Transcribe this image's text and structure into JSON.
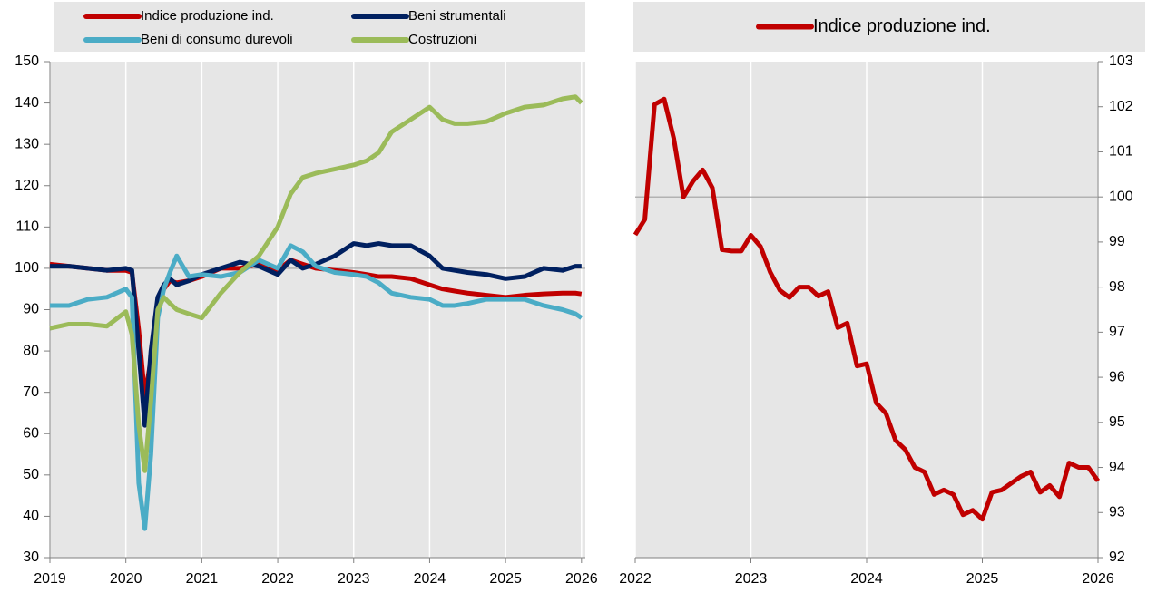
{
  "chart_data": [
    {
      "type": "line",
      "x": [
        2019,
        2019.25,
        2019.5,
        2019.75,
        2020,
        2020.08,
        2020.17,
        2020.25,
        2020.33,
        2020.42,
        2020.5,
        2020.58,
        2020.67,
        2020.83,
        2021,
        2021.25,
        2021.5,
        2021.75,
        2022,
        2022.17,
        2022.33,
        2022.5,
        2022.75,
        2023,
        2023.17,
        2023.33,
        2023.5,
        2023.75,
        2024,
        2024.17,
        2024.33,
        2024.5,
        2024.75,
        2025,
        2025.25,
        2025.5,
        2025.75,
        2025.92,
        2026
      ],
      "series": [
        {
          "name": "Indice produzione ind.",
          "color": "#c00000",
          "values": [
            101,
            100.5,
            100,
            99.5,
            99.5,
            99,
            85,
            69,
            78,
            90,
            95,
            97,
            96.5,
            97,
            98,
            100,
            100,
            101,
            99.5,
            102,
            101,
            100,
            99.5,
            99,
            98.5,
            98,
            98,
            97.5,
            96,
            95,
            94.5,
            94,
            93.5,
            93,
            93.5,
            93.8,
            94,
            94,
            93.8
          ]
        },
        {
          "name": "Beni strumentali",
          "color": "#002060",
          "values": [
            100.5,
            100.5,
            100,
            99.5,
            100,
            99.5,
            80,
            62,
            80,
            93,
            96,
            97.5,
            96,
            97,
            98.5,
            100,
            101.5,
            100.5,
            98.5,
            102,
            100,
            101,
            103,
            106,
            105.5,
            106,
            105.5,
            105.5,
            103,
            100,
            99.5,
            99,
            98.5,
            97.5,
            98,
            100,
            99.5,
            100.5,
            100.5
          ]
        },
        {
          "name": "Beni di consumo durevoli",
          "color": "#4bacc6",
          "values": [
            91,
            91,
            92.5,
            93,
            95,
            93,
            48,
            37,
            55,
            88,
            95,
            99,
            103,
            98,
            98.5,
            98,
            99,
            102,
            100,
            105.5,
            104,
            100.5,
            99,
            98.5,
            98,
            96.5,
            94,
            93,
            92.5,
            91,
            91,
            91.5,
            92.5,
            92.5,
            92.5,
            91,
            90,
            89,
            88
          ]
        },
        {
          "name": "Costruzioni",
          "color": "#9bbb59",
          "values": [
            85.5,
            86.5,
            86.5,
            86,
            89.5,
            84,
            62,
            51,
            68,
            90,
            93,
            91.5,
            90,
            89,
            88,
            94,
            99,
            103,
            110,
            118,
            122,
            123,
            124,
            125,
            126,
            128,
            133,
            136,
            139,
            136,
            135,
            135,
            135.5,
            137.5,
            139,
            139.5,
            141,
            141.5,
            140
          ]
        }
      ],
      "xlim": [
        2019,
        2026.05
      ],
      "xticks": [
        2019,
        2020,
        2021,
        2022,
        2023,
        2024,
        2025,
        2026
      ],
      "ylim": [
        30,
        150
      ],
      "yticks": [
        30,
        40,
        50,
        60,
        70,
        80,
        90,
        100,
        110,
        120,
        130,
        140,
        150
      ],
      "reference_line": 100,
      "grid": "x",
      "y_axis_side": "left",
      "legend_columns": 2
    },
    {
      "type": "line",
      "x": [
        2022,
        2022.083,
        2022.167,
        2022.25,
        2022.333,
        2022.417,
        2022.5,
        2022.583,
        2022.667,
        2022.75,
        2022.833,
        2022.917,
        2023,
        2023.083,
        2023.167,
        2023.25,
        2023.333,
        2023.417,
        2023.5,
        2023.583,
        2023.667,
        2023.75,
        2023.833,
        2023.917,
        2024,
        2024.083,
        2024.167,
        2024.25,
        2024.333,
        2024.417,
        2024.5,
        2024.583,
        2024.667,
        2024.75,
        2024.833,
        2024.917,
        2025,
        2025.083,
        2025.167,
        2025.25,
        2025.333,
        2025.417,
        2025.5,
        2025.583,
        2025.667,
        2025.75,
        2025.833,
        2025.917,
        2026
      ],
      "series": [
        {
          "name": "Indice produzione ind.",
          "color": "#c00000",
          "values": [
            99.16,
            99.5,
            102.05,
            102.17,
            101.3,
            100,
            100.35,
            100.6,
            100.2,
            98.83,
            98.8,
            98.8,
            99.15,
            98.9,
            98.33,
            97.93,
            97.77,
            98,
            98,
            97.8,
            97.9,
            97.1,
            97.2,
            96.25,
            96.3,
            95.43,
            95.2,
            94.6,
            94.4,
            94,
            93.9,
            93.4,
            93.5,
            93.4,
            92.95,
            93.05,
            92.85,
            93.45,
            93.5,
            93.65,
            93.8,
            93.9,
            93.45,
            93.6,
            93.35,
            94.1,
            94,
            94,
            93.7
          ]
        }
      ],
      "xlim": [
        2022,
        2026
      ],
      "xticks": [
        2022,
        2023,
        2024,
        2025,
        2026
      ],
      "ylim": [
        92,
        103
      ],
      "yticks": [
        92,
        93,
        94,
        95,
        96,
        97,
        98,
        99,
        100,
        101,
        102,
        103
      ],
      "reference_line": 100,
      "grid": "x",
      "y_axis_side": "right",
      "legend_columns": 1
    }
  ]
}
